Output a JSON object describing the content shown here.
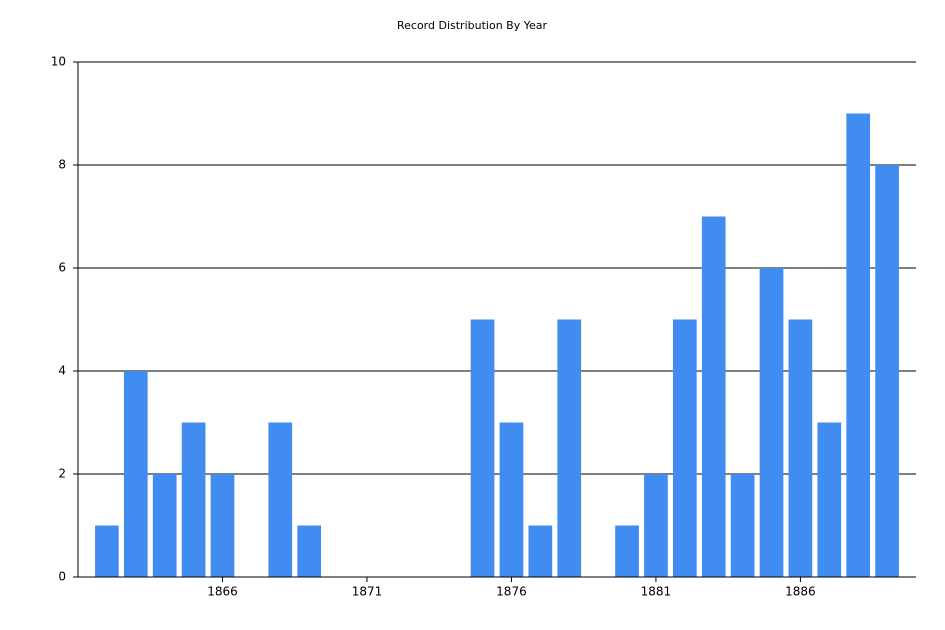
{
  "chart_data": {
    "type": "bar",
    "title": "Record Distribution By Year",
    "x": [
      1862,
      1863,
      1864,
      1865,
      1866,
      1868,
      1869,
      1875,
      1876,
      1877,
      1878,
      1880,
      1881,
      1882,
      1883,
      1884,
      1885,
      1886,
      1887,
      1888,
      1889
    ],
    "values": [
      1,
      4,
      2,
      3,
      2,
      3,
      1,
      5,
      3,
      1,
      5,
      1,
      2,
      5,
      7,
      2,
      6,
      5,
      3,
      9,
      8
    ],
    "color": "#418cf0",
    "xlim": [
      1861,
      1890
    ],
    "xticks": [
      1866,
      1871,
      1876,
      1881,
      1886
    ],
    "ylim": [
      0,
      10
    ],
    "yticks": [
      0,
      2,
      4,
      6,
      8,
      10
    ],
    "grid": true
  }
}
